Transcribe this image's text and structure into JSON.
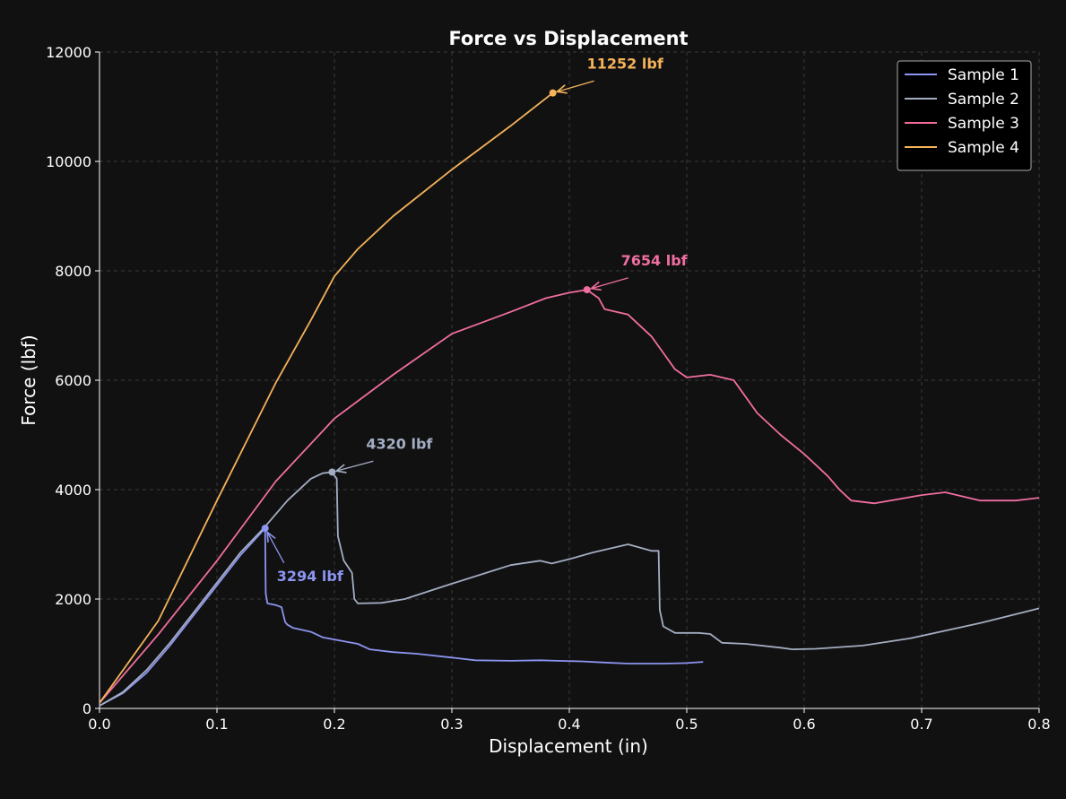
{
  "chart_data": {
    "type": "line",
    "title": "Force vs Displacement",
    "xlabel": "Displacement (in)",
    "ylabel": "Force (lbf)",
    "xlim": [
      0.0,
      0.8
    ],
    "ylim": [
      0,
      12000
    ],
    "x_ticks": [
      0.0,
      0.1,
      0.2,
      0.3,
      0.4,
      0.5,
      0.6,
      0.7,
      0.8
    ],
    "x_tick_labels": [
      "0.0",
      "0.1",
      "0.2",
      "0.3",
      "0.4",
      "0.5",
      "0.6",
      "0.7",
      "0.8"
    ],
    "y_ticks": [
      0,
      2000,
      4000,
      6000,
      8000,
      10000,
      12000
    ],
    "y_tick_labels": [
      "0",
      "2000",
      "4000",
      "6000",
      "8000",
      "10000",
      "12000"
    ],
    "grid": true,
    "legend_position": "top-right",
    "background": "#111111",
    "series": [
      {
        "name": "Sample 1",
        "color": "#8c95f0",
        "x": [
          0.0,
          0.02,
          0.04,
          0.06,
          0.08,
          0.1,
          0.12,
          0.141,
          0.1415,
          0.143,
          0.15,
          0.155,
          0.158,
          0.16,
          0.165,
          0.18,
          0.19,
          0.21,
          0.22,
          0.23,
          0.25,
          0.27,
          0.3,
          0.32,
          0.35,
          0.375,
          0.39,
          0.41,
          0.43,
          0.45,
          0.48,
          0.5,
          0.514
        ],
        "y": [
          50,
          280,
          650,
          1150,
          1700,
          2250,
          2800,
          3294,
          2100,
          1920,
          1890,
          1850,
          1580,
          1530,
          1470,
          1400,
          1300,
          1220,
          1180,
          1080,
          1030,
          1000,
          930,
          880,
          870,
          880,
          870,
          860,
          840,
          820,
          820,
          830,
          850
        ]
      },
      {
        "name": "Sample 2",
        "color": "#a3adc2",
        "x": [
          0.0,
          0.02,
          0.04,
          0.06,
          0.08,
          0.1,
          0.12,
          0.14,
          0.16,
          0.18,
          0.19,
          0.198,
          0.202,
          0.203,
          0.208,
          0.215,
          0.217,
          0.22,
          0.24,
          0.26,
          0.3,
          0.35,
          0.375,
          0.385,
          0.4,
          0.42,
          0.45,
          0.47,
          0.476,
          0.477,
          0.48,
          0.49,
          0.51,
          0.52,
          0.53,
          0.55,
          0.58,
          0.59,
          0.61,
          0.65,
          0.69,
          0.75,
          0.8
        ],
        "y": [
          50,
          300,
          700,
          1200,
          1750,
          2300,
          2850,
          3300,
          3800,
          4200,
          4300,
          4320,
          4200,
          3150,
          2700,
          2480,
          2000,
          1920,
          1930,
          2000,
          2280,
          2620,
          2700,
          2650,
          2730,
          2850,
          3000,
          2880,
          2880,
          1800,
          1500,
          1380,
          1380,
          1360,
          1200,
          1180,
          1110,
          1080,
          1090,
          1150,
          1280,
          1560,
          1830
        ]
      },
      {
        "name": "Sample 3",
        "color": "#f06ea0",
        "x": [
          0.0,
          0.05,
          0.1,
          0.15,
          0.2,
          0.25,
          0.3,
          0.35,
          0.38,
          0.4,
          0.415,
          0.425,
          0.43,
          0.45,
          0.47,
          0.48,
          0.49,
          0.5,
          0.52,
          0.54,
          0.545,
          0.56,
          0.58,
          0.6,
          0.62,
          0.63,
          0.64,
          0.66,
          0.7,
          0.72,
          0.75,
          0.78,
          0.8
        ],
        "y": [
          100,
          1350,
          2700,
          4150,
          5300,
          6100,
          6850,
          7250,
          7500,
          7600,
          7654,
          7500,
          7300,
          7200,
          6800,
          6500,
          6200,
          6050,
          6100,
          6000,
          5850,
          5400,
          5000,
          4650,
          4250,
          4000,
          3800,
          3750,
          3900,
          3950,
          3800,
          3800,
          3850
        ]
      },
      {
        "name": "Sample 4",
        "color": "#f5b35a",
        "x": [
          0.0,
          0.05,
          0.1,
          0.15,
          0.18,
          0.2,
          0.22,
          0.25,
          0.3,
          0.35,
          0.386
        ],
        "y": [
          100,
          1600,
          3800,
          5950,
          7100,
          7900,
          8400,
          9000,
          9850,
          10650,
          11252
        ]
      }
    ],
    "annotations": [
      {
        "text": "11252 lbf",
        "x": 0.386,
        "y": 11252,
        "text_x": 0.415,
        "text_y": 11700,
        "color": "#f5b35a"
      },
      {
        "text": "7654 lbf",
        "x": 0.415,
        "y": 7654,
        "text_x": 0.444,
        "text_y": 8100,
        "color": "#f06ea0"
      },
      {
        "text": "4320 lbf",
        "x": 0.198,
        "y": 4320,
        "text_x": 0.227,
        "text_y": 4750,
        "color": "#a3adc2"
      },
      {
        "text": "3294 lbf",
        "x": 0.141,
        "y": 3294,
        "text_x": 0.151,
        "text_y": 2330,
        "color": "#8c95f0"
      }
    ]
  }
}
